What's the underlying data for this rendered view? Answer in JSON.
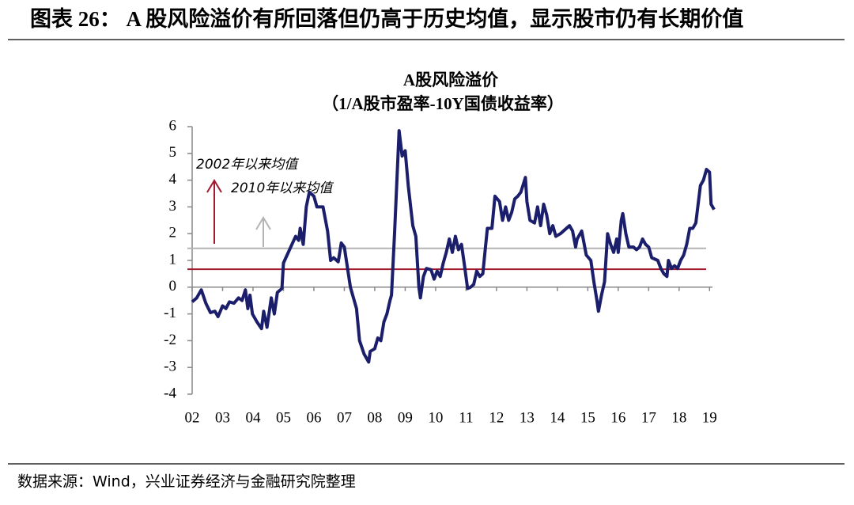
{
  "header": {
    "title": "图表 26： A 股风险溢价有所回落但仍高于历史均值，显示股市仍有长期价值"
  },
  "chart_data": {
    "type": "line",
    "title": "A股风险溢价",
    "subtitle": "（1/A股市盈率-10Y国债收益率）",
    "color": "#1b1f6b",
    "x": [
      2002.0,
      2002.15,
      2002.3,
      2002.45,
      2002.6,
      2002.75,
      2002.85,
      2003.0,
      2003.11,
      2003.225,
      2003.375,
      2003.525,
      2003.64,
      2003.75,
      2003.83,
      2003.9,
      2003.98,
      2004.13,
      2004.28,
      2004.35,
      2004.46,
      2004.6,
      2004.7,
      2004.8,
      2004.95,
      2005.0,
      2005.2,
      2005.4,
      2005.5,
      2005.55,
      2005.65,
      2005.75,
      2005.85,
      2006.0,
      2006.1,
      2006.3,
      2006.45,
      2006.55,
      2006.65,
      2006.8,
      2006.9,
      2007.0,
      2007.2,
      2007.4,
      2007.5,
      2007.65,
      2007.8,
      2007.85,
      2008.0,
      2008.1,
      2008.2,
      2008.3,
      2008.4,
      2008.5,
      2008.55,
      2008.65,
      2008.8,
      2008.9,
      2009.0,
      2009.1,
      2009.25,
      2009.35,
      2009.45,
      2009.5,
      2009.6,
      2009.7,
      2009.85,
      2009.95,
      2010.05,
      2010.15,
      2010.25,
      2010.35,
      2010.45,
      2010.55,
      2010.65,
      2010.75,
      2010.85,
      2010.95,
      2011.05,
      2011.15,
      2011.25,
      2011.35,
      2011.45,
      2011.55,
      2011.7,
      2011.85,
      2011.95,
      2012.1,
      2012.2,
      2012.3,
      2012.4,
      2012.5,
      2012.6,
      2012.7,
      2012.8,
      2012.95,
      2013.0,
      2013.1,
      2013.25,
      2013.35,
      2013.45,
      2013.55,
      2013.65,
      2013.75,
      2013.85,
      2013.95,
      2014.1,
      2014.3,
      2014.4,
      2014.5,
      2014.6,
      2014.65,
      2014.8,
      2014.95,
      2015.1,
      2015.2,
      2015.3,
      2015.35,
      2015.45,
      2015.55,
      2015.65,
      2015.75,
      2015.85,
      2015.95,
      2016.0,
      2016.1,
      2016.15,
      2016.25,
      2016.35,
      2016.5,
      2016.6,
      2016.7,
      2016.8,
      2016.9,
      2017.0,
      2017.1,
      2017.3,
      2017.4,
      2017.5,
      2017.6,
      2017.65,
      2017.75,
      2017.85,
      2017.95,
      2018.05,
      2018.15,
      2018.25,
      2018.35,
      2018.45,
      2018.55,
      2018.7,
      2018.8,
      2018.9,
      2019.0,
      2019.05,
      2019.15
    ],
    "values": [
      -0.55,
      -0.4,
      -0.1,
      -0.6,
      -0.95,
      -0.9,
      -1.1,
      -0.7,
      -0.8,
      -0.55,
      -0.6,
      -0.4,
      -0.5,
      -0.1,
      -0.8,
      -0.3,
      -1.0,
      -1.3,
      -1.55,
      -0.9,
      -1.5,
      -0.4,
      -1.0,
      -0.2,
      -0.05,
      0.9,
      1.4,
      1.9,
      1.75,
      2.2,
      1.6,
      3.0,
      3.55,
      3.4,
      3.0,
      3.0,
      2.1,
      1.0,
      1.1,
      0.95,
      1.65,
      1.5,
      0.0,
      -0.8,
      -2.0,
      -2.5,
      -2.8,
      -2.4,
      -2.3,
      -1.9,
      -2.0,
      -1.3,
      -1.0,
      -0.5,
      -0.3,
      2.0,
      5.85,
      4.9,
      5.1,
      3.8,
      2.3,
      1.9,
      0.0,
      -0.4,
      0.4,
      0.7,
      0.65,
      0.3,
      0.6,
      0.4,
      0.9,
      1.3,
      1.8,
      1.3,
      1.9,
      1.4,
      1.6,
      0.8,
      -0.05,
      0.0,
      0.1,
      0.6,
      0.4,
      0.5,
      2.2,
      2.2,
      3.4,
      3.2,
      2.5,
      3.0,
      2.5,
      2.8,
      3.3,
      3.4,
      3.55,
      4.1,
      3.2,
      2.5,
      2.4,
      3.0,
      2.3,
      3.1,
      2.7,
      2.0,
      2.3,
      1.9,
      2.0,
      2.2,
      2.3,
      2.1,
      1.5,
      1.8,
      2.1,
      1.2,
      1.0,
      0.2,
      -0.5,
      -0.9,
      -0.3,
      0.2,
      2.0,
      1.6,
      1.3,
      1.8,
      1.3,
      2.5,
      2.75,
      2.0,
      1.5,
      1.5,
      1.4,
      1.5,
      1.8,
      1.6,
      1.5,
      1.1,
      1.0,
      0.7,
      0.5,
      0.4,
      1.0,
      0.7,
      0.8,
      0.7,
      1.0,
      1.2,
      1.6,
      2.2,
      2.2,
      2.4,
      3.8,
      4.0,
      4.4,
      4.3,
      3.1,
      2.9
    ],
    "xlim": [
      2002,
      2019.2
    ],
    "ylim": [
      -4,
      6
    ],
    "yticks": [
      -4,
      -3,
      -2,
      -1,
      0,
      1,
      2,
      3,
      4,
      5,
      6
    ],
    "xticks": [
      {
        "value": 2002,
        "label": "02"
      },
      {
        "value": 2003,
        "label": "03"
      },
      {
        "value": 2004,
        "label": "04"
      },
      {
        "value": 2005,
        "label": "05"
      },
      {
        "value": 2006,
        "label": "06"
      },
      {
        "value": 2007,
        "label": "07"
      },
      {
        "value": 2008,
        "label": "08"
      },
      {
        "value": 2009,
        "label": "09"
      },
      {
        "value": 2010,
        "label": "10"
      },
      {
        "value": 2011,
        "label": "11"
      },
      {
        "value": 2012,
        "label": "12"
      },
      {
        "value": 2013,
        "label": "13"
      },
      {
        "value": 2014,
        "label": "14"
      },
      {
        "value": 2015,
        "label": "15"
      },
      {
        "value": 2016,
        "label": "16"
      },
      {
        "value": 2017,
        "label": "17"
      },
      {
        "value": 2018,
        "label": "18"
      },
      {
        "value": 2019,
        "label": "19"
      }
    ],
    "reference_lines": [
      {
        "label": "2002年以来均值",
        "value": 0.67,
        "color": "#a3192d"
      },
      {
        "label": "2010年以来均值",
        "value": 1.45,
        "color": "#b4b4b4"
      }
    ]
  },
  "footer": {
    "source": "数据来源：Wind，兴业证券经济与金融研究院整理"
  }
}
